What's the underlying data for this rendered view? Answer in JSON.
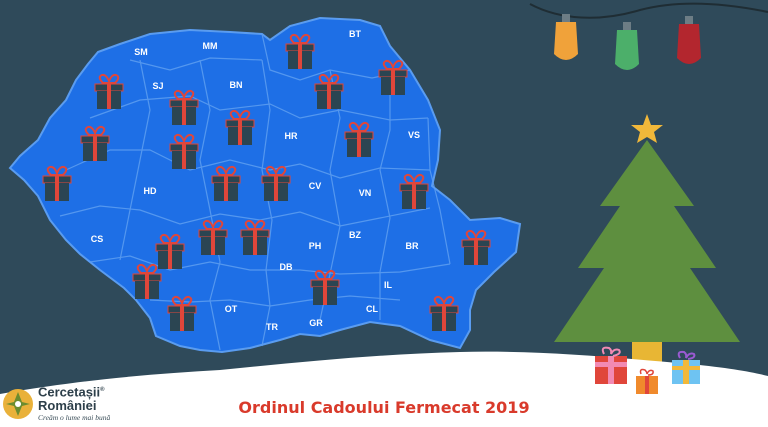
{
  "title": "Ordinul Cadoului Fermecat 2019",
  "logo": {
    "line1": "Cercetașii",
    "line2": "României",
    "tagline": "Creăm o lume mai bună",
    "registered_mark": "®"
  },
  "counties": [
    "SM",
    "MM",
    "BT",
    "SJ",
    "BN",
    "HR",
    "VS",
    "HD",
    "CV",
    "VN",
    "CS",
    "BZ",
    "BR",
    "PH",
    "DB",
    "IL",
    "OT",
    "TR",
    "GR",
    "CL"
  ],
  "colors": {
    "background": "#2f4a5a",
    "map": "#1e6fe6",
    "map_border": "#5a9cf0",
    "gift_box": "#2b4552",
    "gift_ribbon": "#e0463a",
    "tree": "#5e8f3f",
    "trunk": "#e8b634",
    "star": "#f1b83a",
    "snow": "#ffffff",
    "title": "#d93a2b"
  },
  "lights": [
    "#f0a23a",
    "#4caf6a",
    "#b3262e"
  ],
  "icons": [
    "gift-icon",
    "christmas-tree-icon",
    "star-icon",
    "string-lights-icon",
    "scout-logo-icon"
  ]
}
